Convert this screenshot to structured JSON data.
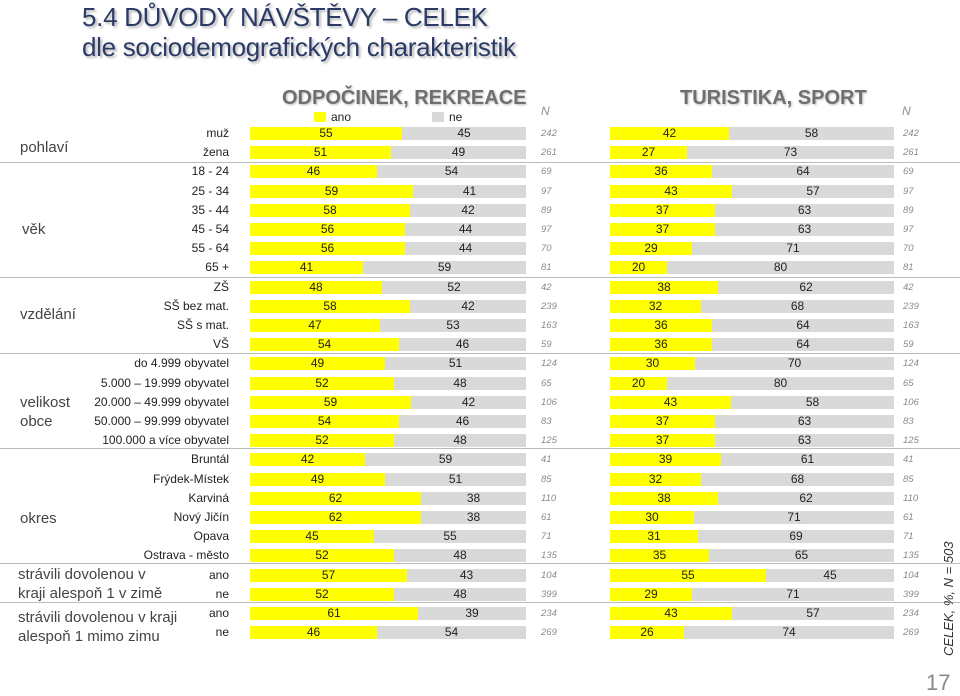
{
  "title_line1": "5.4 DŮVODY NÁVŠTĚVY – CELEK",
  "title_line2": "dle sociodemografických charakteristik",
  "panel1_title": "ODPOČINEK, REKREACE",
  "panel2_title": "TURISTIKA, SPORT",
  "n_header": "N",
  "legend": {
    "ano": "ano",
    "ne": "ne"
  },
  "colors": {
    "ano": "#ffff00",
    "ne": "#d9d9d9",
    "title": "#2b3a66"
  },
  "groups": {
    "pohlavi": "pohlaví",
    "vek": "věk",
    "vzdelani": "vzdělání",
    "velikost_line1": "velikost",
    "velikost_line2": "obce",
    "okres": "okres",
    "zime_line1": "strávili dovolenou v",
    "zime_line2": "kraji alespoň 1 v zimě",
    "mimo_line1": "strávili dovolenou v kraji",
    "mimo_line2": "alespoň 1 mimo zimu"
  },
  "side_note": "CELEK, %, N = 503",
  "page_number": "17",
  "chart_data": {
    "type": "bar",
    "stacked": true,
    "unit": "%",
    "categories": [
      "muž",
      "žena",
      "18 - 24",
      "25 - 34",
      "35 - 44",
      "45 - 54",
      "55 - 64",
      "65 +",
      "ZŠ",
      "SŠ bez mat.",
      "SŠ s mat.",
      "VŠ",
      "do 4.999 obyvatel",
      "5.000 – 19.999 obyvatel",
      "20.000 – 49.999 obyvatel",
      "50.000 – 99.999 obyvatel",
      "100.000 a více obyvatel",
      "Bruntál",
      "Frýdek-Místek",
      "Karviná",
      "Nový Jičín",
      "Opava",
      "Ostrava - město",
      "ano",
      "ne",
      "ano",
      "ne"
    ],
    "N": [
      242,
      261,
      69,
      97,
      89,
      97,
      70,
      81,
      42,
      239,
      163,
      59,
      124,
      65,
      106,
      83,
      125,
      41,
      85,
      110,
      61,
      71,
      135,
      104,
      399,
      234,
      269
    ],
    "panels": [
      {
        "title": "ODPOČINEK, REKREACE",
        "series": [
          {
            "name": "ano",
            "values": [
              55,
              51,
              46,
              59,
              58,
              56,
              56,
              41,
              48,
              58,
              47,
              54,
              49,
              52,
              59,
              54,
              52,
              42,
              49,
              62,
              62,
              45,
              52,
              57,
              52,
              61,
              46
            ]
          },
          {
            "name": "ne",
            "values": [
              45,
              49,
              54,
              41,
              42,
              44,
              44,
              59,
              52,
              42,
              53,
              46,
              51,
              48,
              42,
              46,
              48,
              59,
              51,
              38,
              38,
              55,
              48,
              43,
              48,
              39,
              54
            ]
          }
        ]
      },
      {
        "title": "TURISTIKA, SPORT",
        "series": [
          {
            "name": "ano",
            "values": [
              42,
              27,
              36,
              43,
              37,
              37,
              29,
              20,
              38,
              32,
              36,
              36,
              30,
              20,
              43,
              37,
              37,
              39,
              32,
              38,
              30,
              31,
              35,
              55,
              29,
              43,
              26
            ]
          },
          {
            "name": "ne",
            "values": [
              58,
              73,
              64,
              57,
              63,
              63,
              71,
              80,
              62,
              68,
              64,
              64,
              70,
              80,
              58,
              63,
              63,
              61,
              68,
              62,
              71,
              69,
              65,
              45,
              71,
              57,
              74
            ]
          }
        ]
      }
    ]
  }
}
